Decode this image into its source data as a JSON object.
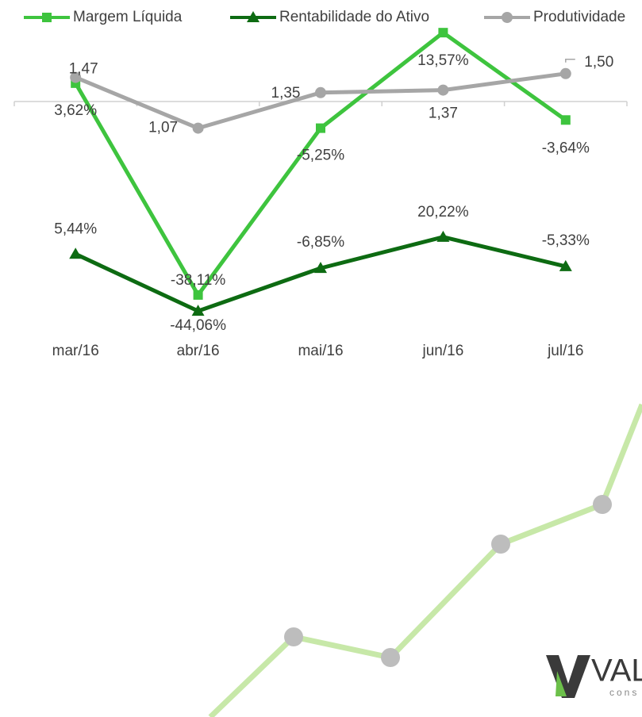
{
  "chart_data": {
    "type": "line",
    "categories": [
      "mar/16",
      "abr/16",
      "mai/16",
      "jun/16",
      "jul/16"
    ],
    "series": [
      {
        "name": "Margem Líquida",
        "color": "#3ec43e",
        "marker": "square",
        "ylim": [
          -48.75,
          20
        ],
        "values": [
          3.62,
          -38.11,
          -5.25,
          13.57,
          -3.64
        ],
        "value_labels": [
          "3,62%",
          "-38,11%",
          "-5,25%",
          "13,57%",
          "-3,64%"
        ]
      },
      {
        "name": "Rentabilidade do Ativo",
        "color": "#0d6b12",
        "marker": "triangle",
        "ylim": [
          -77,
          226
        ],
        "values": [
          5.44,
          -44.06,
          -6.85,
          20.22,
          -5.33
        ],
        "value_labels": [
          "5,44%",
          "-44,06%",
          "-6,85%",
          "20,22%",
          "-5,33%"
        ]
      },
      {
        "name": "Produtividade",
        "color": "#a6a6a6",
        "marker": "circle",
        "ylim": [
          -0.67,
          2.08
        ],
        "values": [
          1.47,
          1.07,
          1.35,
          1.37,
          1.5
        ],
        "value_labels": [
          "1,47",
          "1,07",
          "1,35",
          "1,37",
          "1,50"
        ]
      }
    ]
  },
  "logo": {
    "text": "VAL",
    "subtext": "cons"
  }
}
